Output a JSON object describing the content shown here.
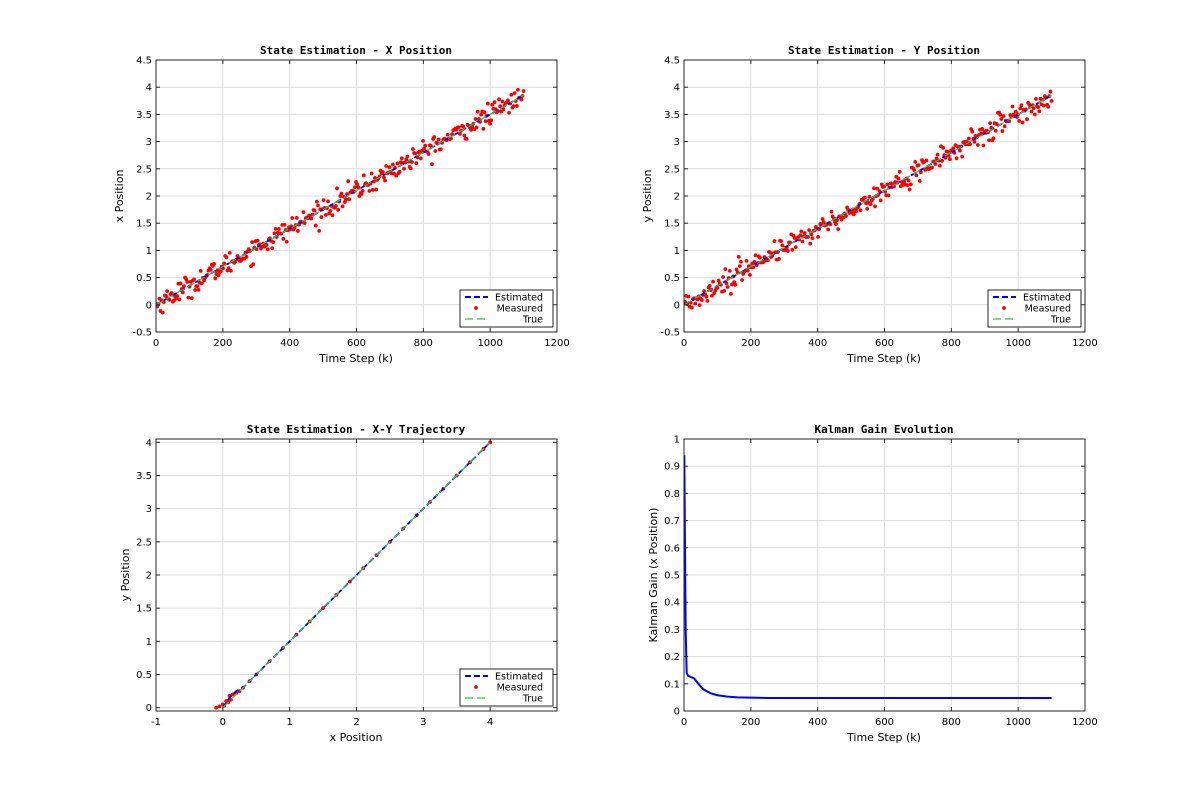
{
  "figure": {
    "background": "#ffffff"
  },
  "colors": {
    "estimated": "#0000ff",
    "measured": "#ff0000",
    "true": "#33cc33",
    "grid": "#dcdcdc"
  },
  "chart_data": [
    {
      "id": "x-position",
      "type": "line",
      "title": "State Estimation - X Position",
      "xlabel": "Time Step (k)",
      "ylabel": "x Position",
      "xlim": [
        0,
        1200
      ],
      "ylim": [
        -0.5,
        4.5
      ],
      "xticks": [
        0,
        200,
        400,
        600,
        800,
        1000,
        1200
      ],
      "yticks": [
        -0.5,
        0,
        0.5,
        1,
        1.5,
        2,
        2.5,
        3,
        3.5,
        4,
        4.5
      ],
      "ytick_labels": [
        "-0.5",
        "0",
        "0.5",
        "1",
        "1.5",
        "2",
        "2.5",
        "3",
        "3.5",
        "4",
        "4.5"
      ],
      "grid": true,
      "legend": {
        "placement": "bottom-right",
        "entries": [
          "Estimated",
          "Measured",
          "True"
        ]
      },
      "series": [
        {
          "name": "Estimated",
          "style": "dashed-line",
          "x": [
            0,
            1100
          ],
          "y": [
            0,
            3.85
          ]
        },
        {
          "name": "Measured",
          "style": "markers",
          "x_range": [
            0,
            1100
          ],
          "trend": [
            0,
            3.85
          ],
          "noise_sd": 0.1,
          "count": 330
        },
        {
          "name": "True",
          "style": "dashed-line",
          "x": [
            0,
            1100
          ],
          "y": [
            0,
            3.85
          ]
        }
      ]
    },
    {
      "id": "y-position",
      "type": "line",
      "title": "State Estimation - Y Position",
      "xlabel": "Time Step (k)",
      "ylabel": "y Position",
      "xlim": [
        0,
        1200
      ],
      "ylim": [
        -0.5,
        4.5
      ],
      "xticks": [
        0,
        200,
        400,
        600,
        800,
        1000,
        1200
      ],
      "yticks": [
        -0.5,
        0,
        0.5,
        1,
        1.5,
        2,
        2.5,
        3,
        3.5,
        4,
        4.5
      ],
      "ytick_labels": [
        "-0.5",
        "0",
        "0.5",
        "1",
        "1.5",
        "2",
        "2.5",
        "3",
        "3.5",
        "4",
        "4.5"
      ],
      "grid": true,
      "legend": {
        "placement": "bottom-right",
        "entries": [
          "Estimated",
          "Measured",
          "True"
        ]
      },
      "series": [
        {
          "name": "Estimated",
          "style": "dashed-line",
          "x": [
            0,
            1100
          ],
          "y": [
            0,
            3.85
          ]
        },
        {
          "name": "Measured",
          "style": "markers",
          "x_range": [
            0,
            1100
          ],
          "trend": [
            0,
            3.85
          ],
          "noise_sd": 0.1,
          "count": 330
        },
        {
          "name": "True",
          "style": "dashed-line",
          "x": [
            0,
            1100
          ],
          "y": [
            0,
            3.85
          ]
        }
      ]
    },
    {
      "id": "xy-trajectory",
      "type": "scatter",
      "title": "State Estimation - X-Y Trajectory",
      "xlabel": "x Position",
      "ylabel": "y Position",
      "xlim": [
        -1,
        5
      ],
      "ylim": [
        -0.05,
        4.05
      ],
      "xticks": [
        -1,
        0,
        1,
        2,
        3,
        4
      ],
      "yticks": [
        0,
        0.5,
        1,
        1.5,
        2,
        2.5,
        3,
        3.5,
        4
      ],
      "ytick_labels": [
        "0",
        "0.5",
        "1",
        "1.5",
        "2",
        "2.5",
        "3",
        "3.5",
        "4"
      ],
      "grid": true,
      "legend": {
        "placement": "bottom-right",
        "entries": [
          "Estimated",
          "Measured",
          "True"
        ]
      },
      "series": [
        {
          "name": "Estimated",
          "style": "dashed-line",
          "x": [
            0,
            0.05,
            0.1,
            0.15,
            0.2,
            0.3,
            4
          ],
          "y": [
            0,
            0.07,
            0.15,
            0.2,
            0.25,
            0.3,
            4
          ]
        },
        {
          "name": "Measured",
          "style": "markers",
          "x": [
            -0.1,
            -0.05,
            0.0,
            0.02,
            0.05,
            0.08,
            0.1,
            0.12,
            0.15,
            0.2,
            0.25,
            0.3,
            0.4,
            0.5,
            0.7,
            0.9,
            1.1,
            1.3,
            1.5,
            1.7,
            1.9,
            2.1,
            2.3,
            2.5,
            2.7,
            2.9,
            3.1,
            3.3,
            3.5,
            3.7,
            3.9,
            4.0
          ],
          "y": [
            0.0,
            0.02,
            0.05,
            0.03,
            0.1,
            0.08,
            0.18,
            0.12,
            0.2,
            0.22,
            0.25,
            0.3,
            0.4,
            0.5,
            0.7,
            0.9,
            1.1,
            1.3,
            1.5,
            1.7,
            1.9,
            2.1,
            2.3,
            2.5,
            2.7,
            2.9,
            3.1,
            3.3,
            3.5,
            3.7,
            3.9,
            4.0
          ]
        },
        {
          "name": "True",
          "style": "dashed-line",
          "x": [
            0,
            4
          ],
          "y": [
            0,
            4
          ]
        }
      ]
    },
    {
      "id": "kalman-gain",
      "type": "line",
      "title": "Kalman Gain Evolution",
      "xlabel": "Time Step (k)",
      "ylabel": "Kalman Gain (x Position)",
      "xlim": [
        0,
        1200
      ],
      "ylim": [
        0,
        1
      ],
      "xticks": [
        0,
        200,
        400,
        600,
        800,
        1000,
        1200
      ],
      "yticks": [
        0,
        0.1,
        0.2,
        0.3,
        0.4,
        0.5,
        0.6,
        0.7,
        0.8,
        0.9,
        1
      ],
      "ytick_labels": [
        "0",
        "0.1",
        "0.2",
        "0.3",
        "0.4",
        "0.5",
        "0.6",
        "0.7",
        "0.8",
        "0.9",
        "1"
      ],
      "grid": true,
      "series": [
        {
          "name": "",
          "style": "solid-line",
          "x": [
            1,
            3,
            5,
            8,
            12,
            20,
            30,
            40,
            50,
            60,
            80,
            100,
            130,
            160,
            200,
            250,
            300,
            400,
            500,
            600,
            800,
            1000,
            1100
          ],
          "y": [
            0.94,
            0.6,
            0.3,
            0.14,
            0.13,
            0.125,
            0.12,
            0.105,
            0.09,
            0.078,
            0.065,
            0.058,
            0.053,
            0.05,
            0.049,
            0.048,
            0.048,
            0.048,
            0.048,
            0.048,
            0.048,
            0.048,
            0.048
          ]
        }
      ]
    }
  ]
}
